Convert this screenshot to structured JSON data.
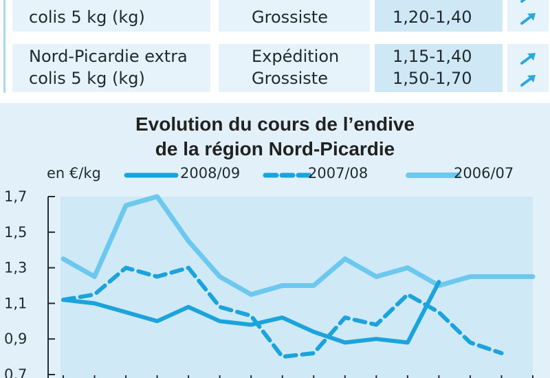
{
  "table": {
    "rows": [
      {
        "name_lines": [
          "",
          "colis 5 kg (kg)"
        ],
        "stages": [
          "",
          "Grossiste"
        ],
        "prices": [
          "",
          "1,20-1,40"
        ]
      },
      {
        "name_lines": [
          "Nord-Picardie extra",
          "colis 5 kg (kg)"
        ],
        "stages": [
          "Expédition",
          "Grossiste"
        ],
        "prices": [
          "1,15-1,40",
          "1,50-1,70"
        ]
      }
    ],
    "trend_icon": "arrow-up-right-icon",
    "colors": {
      "row_bg": "#e6f3fa",
      "price_bg": "#cfe8f5",
      "arrow": "#29a9de"
    }
  },
  "chart_data": {
    "type": "line",
    "title": "Evolution du cours de l’endive\nde la région Nord-Picardie",
    "title_lines": [
      "Evolution du cours de l’endive",
      "de la région Nord-Picardie"
    ],
    "ylabel": "en €/kg",
    "ylim": [
      0.7,
      1.7
    ],
    "yticks": [
      1.7,
      1.5,
      1.3,
      1.1,
      0.9,
      0.7
    ],
    "ytick_labels": [
      "1,7",
      "1,5",
      "1,3",
      "1,1",
      "0,9",
      "0,7"
    ],
    "x": [
      1,
      2,
      3,
      4,
      5,
      6,
      7,
      8,
      9,
      10,
      11,
      12,
      13,
      14,
      15,
      16
    ],
    "legend_position": "top",
    "grid": false,
    "series": [
      {
        "name": "2008/09",
        "style": "solid-thick",
        "color": "#1ba3dc",
        "values": [
          1.12,
          1.1,
          1.05,
          1.0,
          1.08,
          1.0,
          0.98,
          1.02,
          0.94,
          0.88,
          0.9,
          0.88,
          1.22,
          null,
          null,
          null
        ]
      },
      {
        "name": "2007/08",
        "style": "dashed",
        "color": "#1ba3dc",
        "values": [
          1.12,
          1.15,
          1.3,
          1.25,
          1.3,
          1.08,
          1.03,
          0.8,
          0.82,
          1.02,
          0.98,
          1.15,
          1.05,
          0.88,
          0.82,
          null
        ]
      },
      {
        "name": "2006/07",
        "style": "solid-light",
        "color": "#6cc8ef",
        "values": [
          1.35,
          1.25,
          1.65,
          1.7,
          1.45,
          1.25,
          1.15,
          1.2,
          1.2,
          1.35,
          1.25,
          1.3,
          1.2,
          1.25,
          1.25,
          1.25
        ]
      }
    ]
  }
}
